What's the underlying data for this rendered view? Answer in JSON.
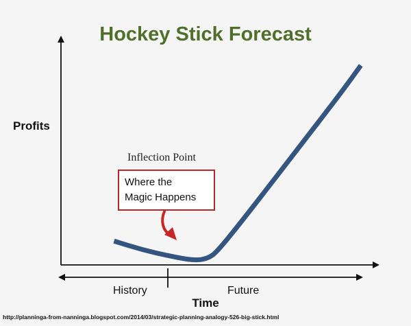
{
  "chart_data": {
    "type": "line",
    "title": "Hockey Stick Forecast",
    "xlabel": "Time",
    "ylabel": "Profits",
    "grid": false,
    "series": [
      {
        "values": [
          [
            0.17,
            0.11
          ],
          [
            0.26,
            0.07
          ],
          [
            0.35,
            0.04
          ],
          [
            0.43,
            0.02
          ],
          [
            0.47,
            0.03
          ],
          [
            0.5,
            0.06
          ],
          [
            0.6,
            0.24
          ],
          [
            0.75,
            0.52
          ],
          [
            0.9,
            0.8
          ],
          [
            0.96,
            0.92
          ]
        ],
        "color": "#34557f"
      }
    ],
    "regions": [
      "History",
      "Future"
    ],
    "annotation": {
      "heading": "Inflection Point",
      "callout": [
        "Where the",
        "Magic Happens"
      ],
      "border_color": "#b8282b",
      "arrow_color": "#c62828"
    }
  },
  "source": "http://planninga-from-nanninga.blogspot.com/2014/03/strategic-planning-analogy-526-big-stick.html"
}
